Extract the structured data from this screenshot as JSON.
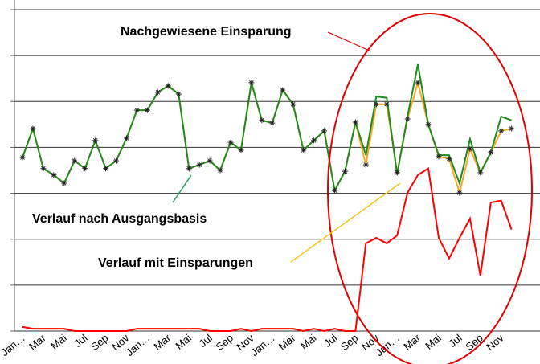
{
  "chart_data": {
    "type": "line",
    "categories": [
      "Jan…",
      null,
      "Mar",
      null,
      "Mai",
      null,
      "Jul",
      null,
      "Sep",
      null,
      "Nov",
      null,
      "Jan…",
      null,
      "Mar",
      null,
      "Mai",
      null,
      "Jul",
      null,
      "Sep",
      null,
      "Nov",
      null,
      "Jan…",
      null,
      "Mar",
      null,
      "Mai",
      null,
      "Jul",
      null,
      "Sep",
      null,
      "Nov",
      null,
      "Jan…",
      null,
      "Mar",
      null,
      "Mai",
      null,
      "Jul",
      null,
      "Sep",
      null,
      "Nov",
      null
    ],
    "series": [
      {
        "color": "#ff0000",
        "values": [
          0.09,
          0.05,
          0.05,
          0.05,
          0.05,
          0,
          0,
          0,
          0,
          0,
          0,
          0.05,
          0.05,
          0.05,
          0.05,
          0.05,
          0.05,
          0.05,
          0,
          0,
          0,
          0.05,
          0,
          0.05,
          0.05,
          0.05,
          0.05,
          0,
          0.05,
          0,
          0.05,
          0,
          0,
          1.91,
          2.03,
          1.91,
          2.08,
          3.01,
          3.4,
          3.54,
          2.03,
          1.58,
          2.03,
          2.45,
          1.21,
          2.8,
          2.84,
          2.21
        ]
      },
      {
        "color": "#f5a623",
        "marker": "asterisk",
        "values": [
          3.78,
          4.41,
          3.54,
          3.4,
          3.22,
          3.71,
          3.54,
          4.15,
          3.54,
          3.71,
          4.2,
          4.81,
          4.81,
          5.2,
          5.34,
          5.16,
          3.54,
          3.62,
          3.71,
          3.5,
          4.11,
          3.94,
          5.41,
          4.59,
          4.53,
          5.25,
          4.94,
          3.94,
          4.15,
          4.36,
          3.06,
          3.48,
          4.55,
          3.62,
          4.94,
          4.94,
          3.45,
          4.62,
          5.41,
          4.5,
          3.8,
          3.75,
          3.01,
          3.97,
          3.45,
          3.89,
          4.36,
          4.41
        ]
      },
      {
        "color": "#1f8a1f",
        "values": [
          3.78,
          4.41,
          3.54,
          3.4,
          3.22,
          3.71,
          3.54,
          4.15,
          3.54,
          3.71,
          4.2,
          4.81,
          4.81,
          5.2,
          5.34,
          5.16,
          3.54,
          3.62,
          3.71,
          3.5,
          4.11,
          3.94,
          5.41,
          4.59,
          4.53,
          5.25,
          4.94,
          3.94,
          4.15,
          4.36,
          3.06,
          3.48,
          4.55,
          3.83,
          5.11,
          5.08,
          3.41,
          4.67,
          5.81,
          4.5,
          3.83,
          3.83,
          3.22,
          4.18,
          3.45,
          3.89,
          4.67,
          4.59
        ]
      }
    ],
    "ylim": [
      0,
      7
    ],
    "yticks": [
      0,
      1,
      2,
      3,
      4,
      5,
      6,
      7
    ],
    "grid": true,
    "annotations": [
      "Nachgewiesene Einsparung",
      "Verlauf nach Ausgangsbasis",
      "Verlauf mit Einsparungen"
    ]
  }
}
